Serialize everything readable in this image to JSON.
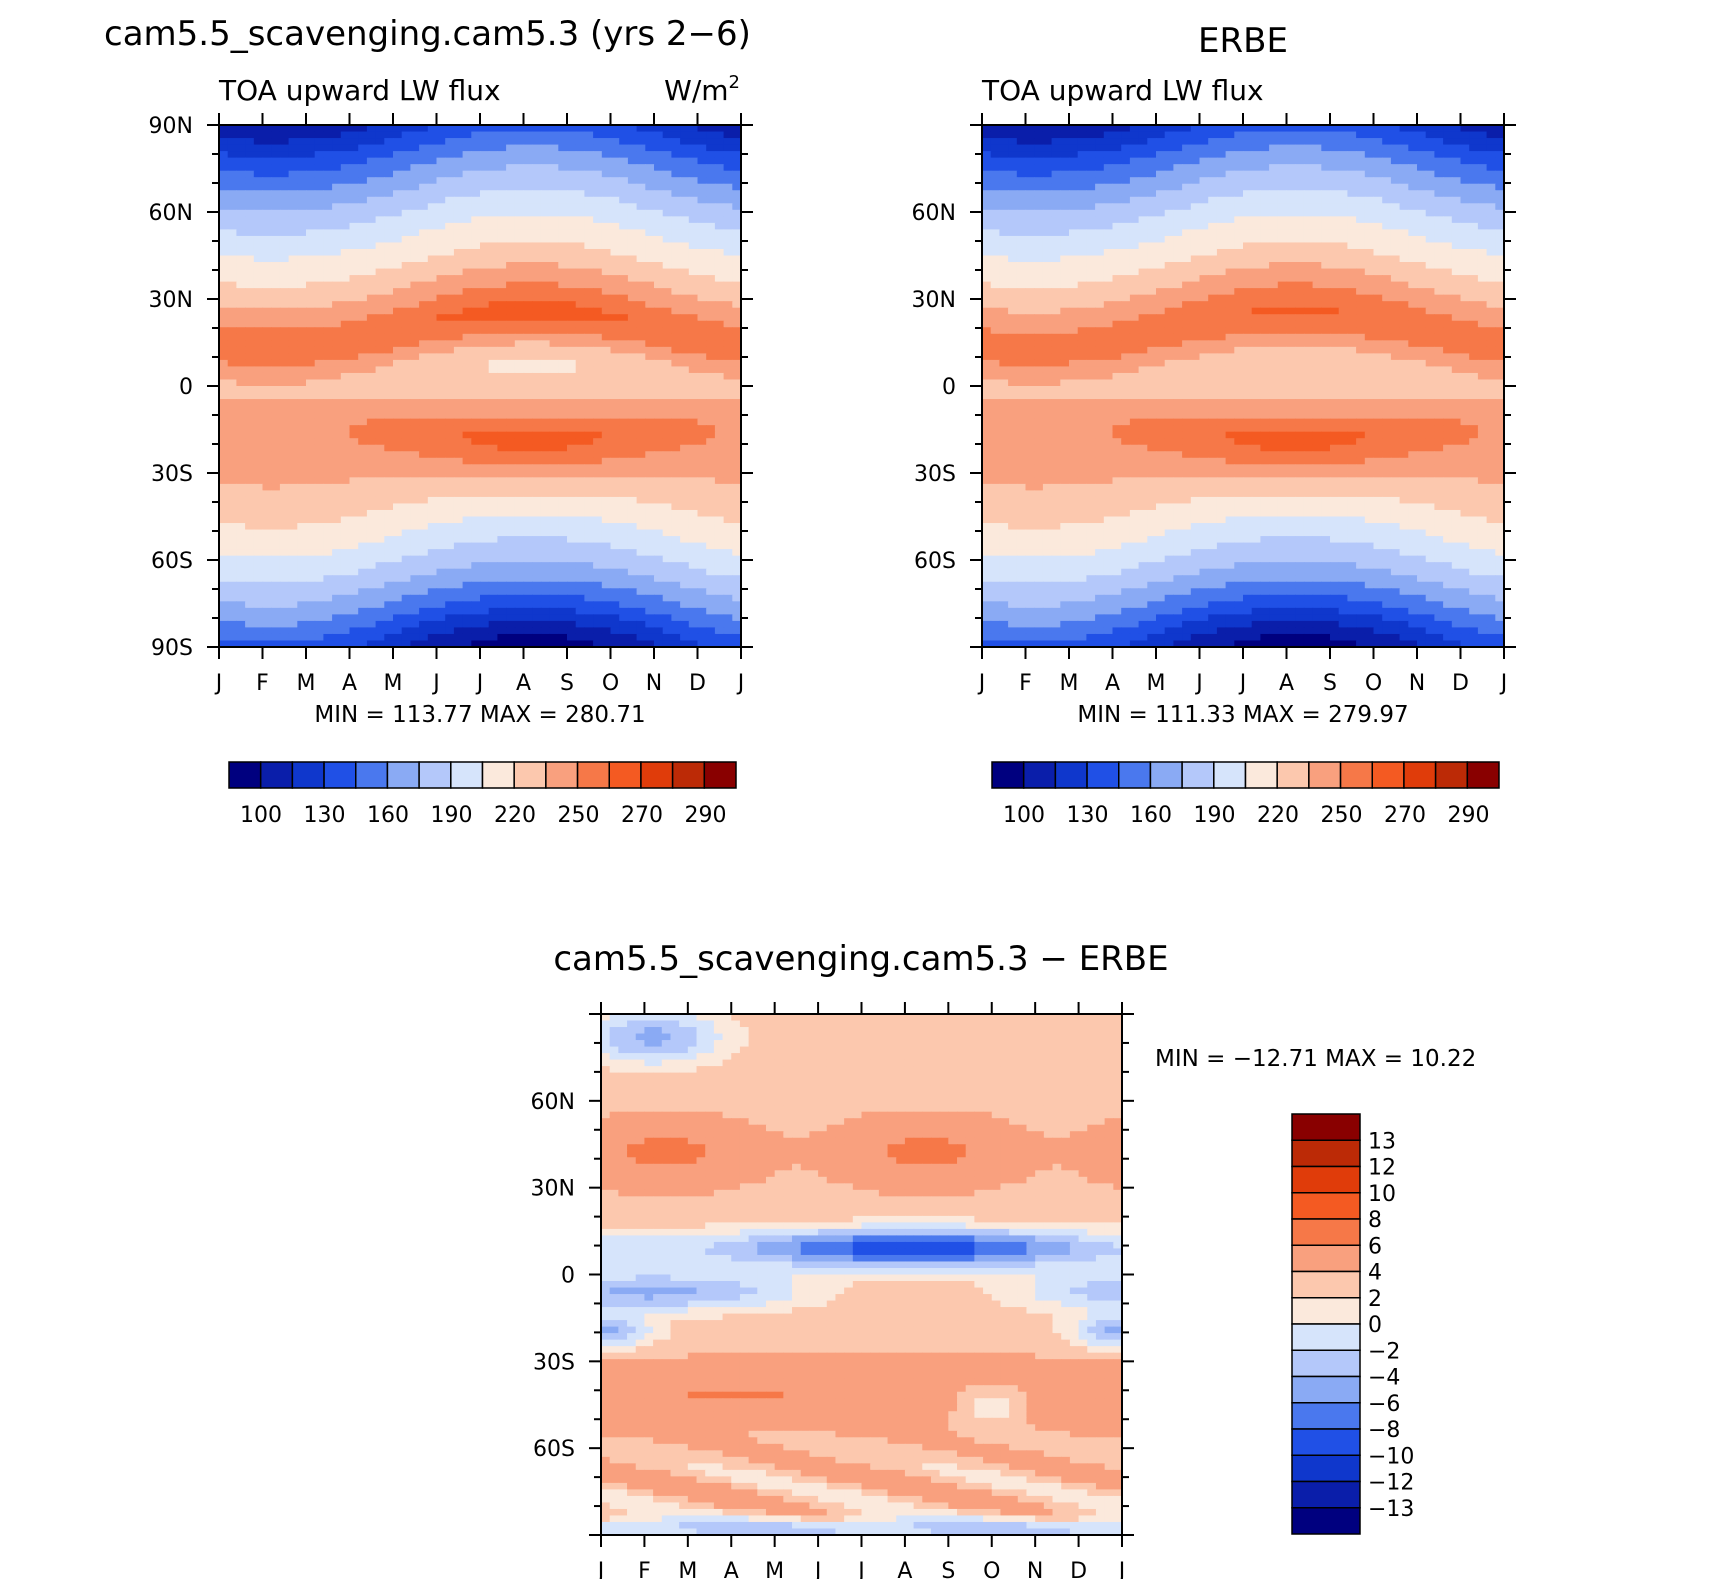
{
  "chart_data": [
    {
      "type": "heatmap",
      "panel": "model",
      "title": "cam5.5_scavenging.cam5.3 (yrs 2−6)",
      "left_label": "TOA upward LW flux",
      "units": "W/m",
      "units_sup": "2",
      "xlabel": "",
      "ylabel": "",
      "xticks": [
        "J",
        "F",
        "M",
        "A",
        "M",
        "J",
        "J",
        "A",
        "S",
        "O",
        "N",
        "D",
        "J"
      ],
      "yticks": [
        "90N",
        "60N",
        "30N",
        "0",
        "30S",
        "60S",
        "90S"
      ],
      "ylim": [
        -90,
        90
      ],
      "min_max_text": "MIN = 113.77 MAX = 280.71",
      "min": 113.77,
      "max": 280.71,
      "colorbar_labels": [
        "100",
        "130",
        "160",
        "190",
        "220",
        "250",
        "270",
        "290"
      ],
      "colorbar_colors": [
        "#00007f",
        "#0a1eaa",
        "#0f37cc",
        "#2050e6",
        "#4a78ee",
        "#8aaaf4",
        "#b4c8fa",
        "#d6e4fb",
        "#fbe9dc",
        "#fcc8ae",
        "#f9a07e",
        "#f67848",
        "#f45a22",
        "#e03c0a",
        "#bc2a06",
        "#890000"
      ]
    },
    {
      "type": "heatmap",
      "panel": "obs",
      "title": "ERBE",
      "left_label": "TOA upward LW flux",
      "xticks": [
        "J",
        "F",
        "M",
        "A",
        "M",
        "J",
        "J",
        "A",
        "S",
        "O",
        "N",
        "D",
        "J"
      ],
      "yticks": [
        "60N",
        "30N",
        "0",
        "30S",
        "60S"
      ],
      "ylim": [
        -90,
        90
      ],
      "min_max_text": "MIN = 111.33 MAX = 279.97",
      "min": 111.33,
      "max": 279.97,
      "colorbar_labels": [
        "100",
        "130",
        "160",
        "190",
        "220",
        "250",
        "270",
        "290"
      ],
      "colorbar_colors": [
        "#00007f",
        "#0a1eaa",
        "#0f37cc",
        "#2050e6",
        "#4a78ee",
        "#8aaaf4",
        "#b4c8fa",
        "#d6e4fb",
        "#fbe9dc",
        "#fcc8ae",
        "#f9a07e",
        "#f67848",
        "#f45a22",
        "#e03c0a",
        "#bc2a06",
        "#890000"
      ]
    },
    {
      "type": "heatmap",
      "panel": "diff",
      "title": "cam5.5_scavenging.cam5.3 − ERBE",
      "xticks": [
        "J",
        "F",
        "M",
        "A",
        "M",
        "J",
        "J",
        "A",
        "S",
        "O",
        "N",
        "D",
        "J"
      ],
      "yticks": [
        "60N",
        "30N",
        "0",
        "30S",
        "60S"
      ],
      "ylim": [
        -90,
        90
      ],
      "min_max_text": "MIN = −12.71 MAX =  10.22",
      "min": -12.71,
      "max": 10.22,
      "colorbar_labels": [
        "13",
        "12",
        "10",
        "8",
        "6",
        "4",
        "2",
        "0",
        "−2",
        "−4",
        "−6",
        "−8",
        "−10",
        "−12",
        "−13"
      ],
      "colorbar_colors": [
        "#890000",
        "#bc2a06",
        "#e03c0a",
        "#f45a22",
        "#f67848",
        "#f9a07e",
        "#fcc8ae",
        "#fbe9dc",
        "#d6e4fb",
        "#b4c8fa",
        "#8aaaf4",
        "#4a78ee",
        "#2050e6",
        "#0f37cc",
        "#0a1eaa",
        "#00007f"
      ]
    }
  ]
}
